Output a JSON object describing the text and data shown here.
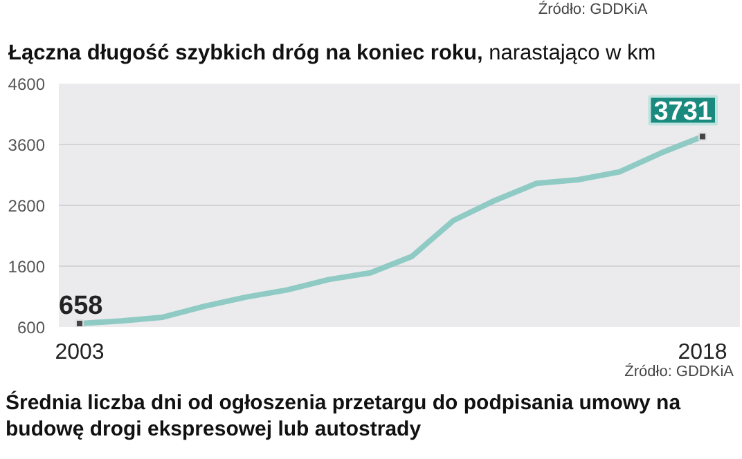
{
  "chart_data": {
    "type": "line",
    "title": "Łączna długość szybkich dróg na koniec roku,",
    "subtitle": "narastająco w km",
    "x": [
      2003,
      2004,
      2005,
      2006,
      2007,
      2008,
      2009,
      2010,
      2011,
      2012,
      2013,
      2014,
      2015,
      2016,
      2017,
      2018
    ],
    "values": [
      658,
      700,
      760,
      940,
      1090,
      1210,
      1380,
      1490,
      1760,
      2350,
      2680,
      2960,
      3020,
      3150,
      3460,
      3731
    ],
    "value_labels": [
      "658",
      null,
      null,
      null,
      null,
      null,
      null,
      null,
      null,
      null,
      null,
      null,
      null,
      null,
      null,
      "3731"
    ],
    "color": "#8fcbc4",
    "marker": "none",
    "line_style": "solid",
    "grid": "y",
    "xlim": [
      2002.5,
      2018.9
    ],
    "xticks": [
      2003,
      2018
    ],
    "ylim": [
      600,
      4600
    ],
    "yticks": [
      600,
      1600,
      2600,
      3600,
      4600
    ],
    "annotations": [
      "Źródło: GDDKiA",
      "Źródło: GDDKiA",
      "Średnia liczba dni od ogłoszenia przetargu do podpisania umowy na budowę drogi ekspresowej lub autostrady"
    ]
  }
}
